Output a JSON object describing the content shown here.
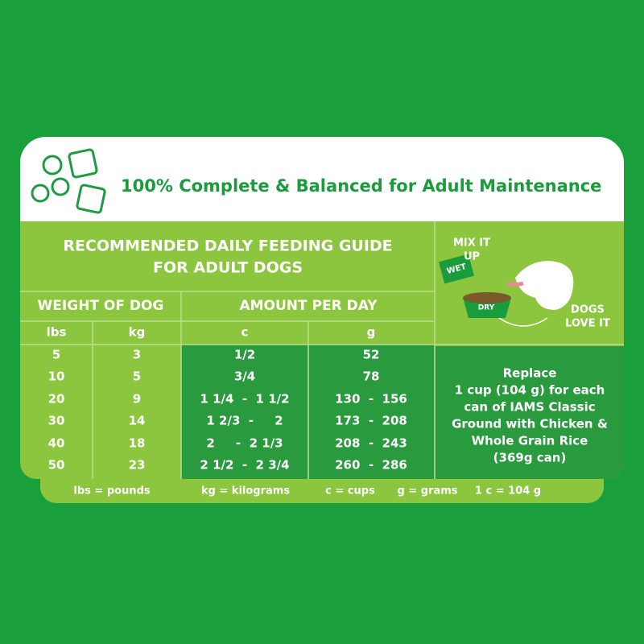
{
  "header": {
    "title": "100% Complete & Balanced for Adult Maintenance"
  },
  "guide": {
    "title_lines": [
      "RECOMMENDED DAILY FEEDING GUIDE",
      "FOR ADULT DOGS"
    ],
    "group_headers": [
      "WEIGHT OF DOG",
      "AMOUNT PER DAY"
    ],
    "columns": [
      "lbs",
      "kg",
      "c",
      "g"
    ],
    "rows": [
      [
        "5",
        "3",
        "1/2",
        "52"
      ],
      [
        "10",
        "5",
        "3/4",
        "78"
      ],
      [
        "20",
        "9",
        "1 1/4  -  1 1/2",
        "130  -  156"
      ],
      [
        "30",
        "14",
        "1 2/3  -     2",
        "173  -  208"
      ],
      [
        "40",
        "18",
        "2     -  2 1/3",
        "208  -  243"
      ],
      [
        "50",
        "23",
        "2 1/2  -  2 3/4",
        "260  -  286"
      ]
    ]
  },
  "illustration": {
    "mix_lines": [
      "MIX IT",
      "UP"
    ],
    "wet": "WET",
    "dry": "DRY",
    "love_lines": [
      "DOGS",
      "LOVE IT"
    ]
  },
  "note": {
    "lines": [
      "Replace",
      "1 cup (104 g) for each",
      "can of IAMS Classic",
      "Ground with Chicken &",
      "Whole Grain Rice",
      "(369g can)"
    ]
  },
  "footer": {
    "legend": [
      "lbs = pounds",
      "kg = kilograms",
      "c = cups",
      "g = grams",
      "1 c = 104 g"
    ]
  }
}
